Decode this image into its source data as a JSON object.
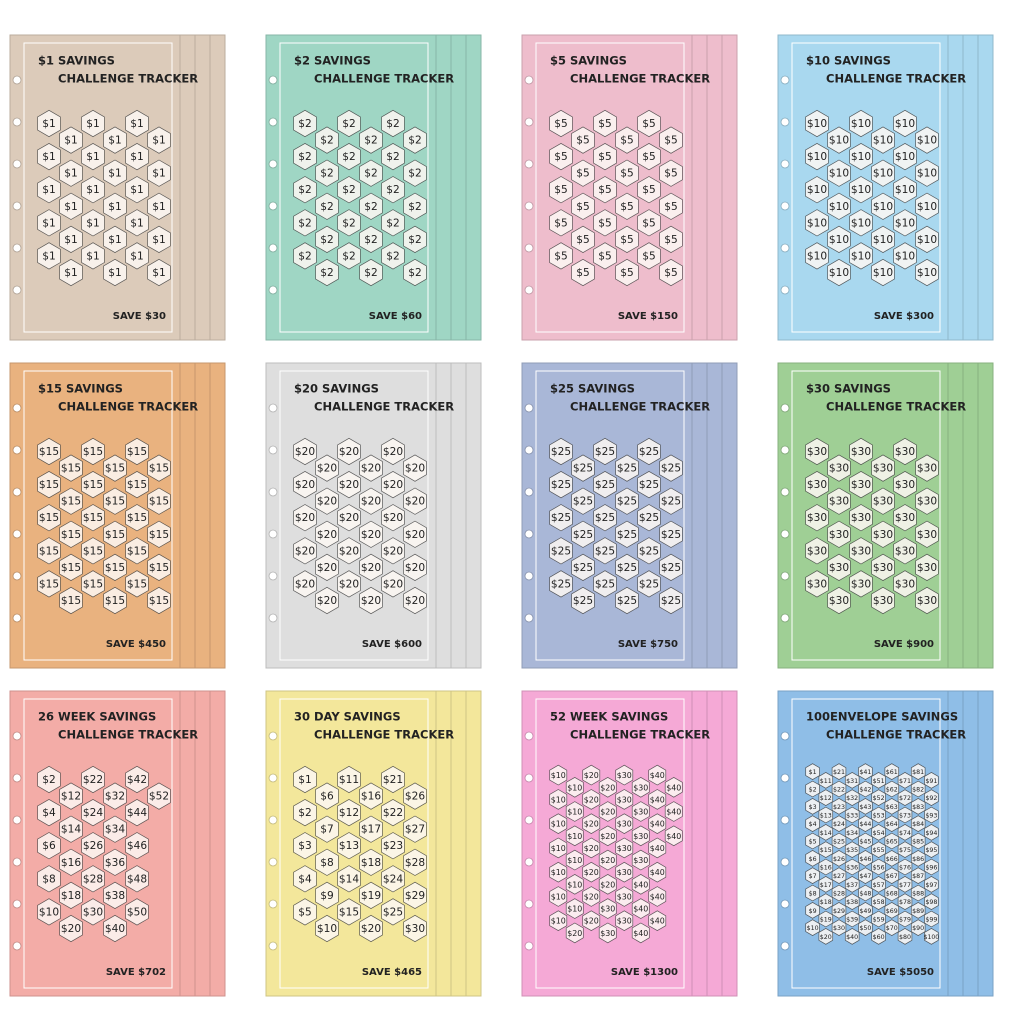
{
  "cards": [
    {
      "title_line1": "$1 SAVINGS",
      "title_line2": "CHALLENGE TRACKER",
      "total": "SAVE $30",
      "color": "#dccbba",
      "cells": [
        "$1",
        "$1",
        "$1",
        "$1",
        "$1",
        "$1",
        "$1",
        "$1",
        "$1",
        "$1",
        "$1",
        "$1",
        "$1",
        "$1",
        "$1",
        "$1",
        "$1",
        "$1",
        "$1",
        "$1",
        "$1",
        "$1",
        "$1",
        "$1",
        "$1",
        "$1",
        "$1",
        "$1",
        "$1",
        "$1"
      ]
    },
    {
      "title_line1": "$2 SAVINGS",
      "title_line2": "CHALLENGE TRACKER",
      "total": "SAVE $60",
      "color": "#9fd6c4",
      "cells": [
        "$2",
        "$2",
        "$2",
        "$2",
        "$2",
        "$2",
        "$2",
        "$2",
        "$2",
        "$2",
        "$2",
        "$2",
        "$2",
        "$2",
        "$2",
        "$2",
        "$2",
        "$2",
        "$2",
        "$2",
        "$2",
        "$2",
        "$2",
        "$2",
        "$2",
        "$2",
        "$2",
        "$2",
        "$2",
        "$2"
      ]
    },
    {
      "title_line1": "$5 SAVINGS",
      "title_line2": "CHALLENGE TRACKER",
      "total": "SAVE $150",
      "color": "#eebdcc",
      "cells": [
        "$5",
        "$5",
        "$5",
        "$5",
        "$5",
        "$5",
        "$5",
        "$5",
        "$5",
        "$5",
        "$5",
        "$5",
        "$5",
        "$5",
        "$5",
        "$5",
        "$5",
        "$5",
        "$5",
        "$5",
        "$5",
        "$5",
        "$5",
        "$5",
        "$5",
        "$5",
        "$5",
        "$5",
        "$5",
        "$5"
      ]
    },
    {
      "title_line1": "$10 SAVINGS",
      "title_line2": "CHALLENGE TRACKER",
      "total": "SAVE $300",
      "color": "#a9d8ef",
      "cells": [
        "$10",
        "$10",
        "$10",
        "$10",
        "$10",
        "$10",
        "$10",
        "$10",
        "$10",
        "$10",
        "$10",
        "$10",
        "$10",
        "$10",
        "$10",
        "$10",
        "$10",
        "$10",
        "$10",
        "$10",
        "$10",
        "$10",
        "$10",
        "$10",
        "$10",
        "$10",
        "$10",
        "$10",
        "$10",
        "$10"
      ]
    },
    {
      "title_line1": "$15 SAVINGS",
      "title_line2": "CHALLENGE TRACKER",
      "total": "SAVE $450",
      "color": "#e9b27f",
      "cells": [
        "$15",
        "$15",
        "$15",
        "$15",
        "$15",
        "$15",
        "$15",
        "$15",
        "$15",
        "$15",
        "$15",
        "$15",
        "$15",
        "$15",
        "$15",
        "$15",
        "$15",
        "$15",
        "$15",
        "$15",
        "$15",
        "$15",
        "$15",
        "$15",
        "$15",
        "$15",
        "$15",
        "$15",
        "$15",
        "$15"
      ]
    },
    {
      "title_line1": "$20 SAVINGS",
      "title_line2": "CHALLENGE TRACKER",
      "total": "SAVE $600",
      "color": "#dedede",
      "cells": [
        "$20",
        "$20",
        "$20",
        "$20",
        "$20",
        "$20",
        "$20",
        "$20",
        "$20",
        "$20",
        "$20",
        "$20",
        "$20",
        "$20",
        "$20",
        "$20",
        "$20",
        "$20",
        "$20",
        "$20",
        "$20",
        "$20",
        "$20",
        "$20",
        "$20",
        "$20",
        "$20",
        "$20",
        "$20",
        "$20"
      ]
    },
    {
      "title_line1": "$25 SAVINGS",
      "title_line2": "CHALLENGE TRACKER",
      "total": "SAVE $750",
      "color": "#a9b7d7",
      "cells": [
        "$25",
        "$25",
        "$25",
        "$25",
        "$25",
        "$25",
        "$25",
        "$25",
        "$25",
        "$25",
        "$25",
        "$25",
        "$25",
        "$25",
        "$25",
        "$25",
        "$25",
        "$25",
        "$25",
        "$25",
        "$25",
        "$25",
        "$25",
        "$25",
        "$25",
        "$25",
        "$25",
        "$25",
        "$25",
        "$25"
      ]
    },
    {
      "title_line1": "$30 SAVINGS",
      "title_line2": "CHALLENGE TRACKER",
      "total": "SAVE $900",
      "color": "#9fcf95",
      "cells": [
        "$30",
        "$30",
        "$30",
        "$30",
        "$30",
        "$30",
        "$30",
        "$30",
        "$30",
        "$30",
        "$30",
        "$30",
        "$30",
        "$30",
        "$30",
        "$30",
        "$30",
        "$30",
        "$30",
        "$30",
        "$30",
        "$30",
        "$30",
        "$30",
        "$30",
        "$30",
        "$30",
        "$30",
        "$30",
        "$30"
      ]
    },
    {
      "title_line1": "26 WEEK SAVINGS",
      "title_line2": "CHALLENGE TRACKER",
      "total": "SAVE $702",
      "color": "#f3aca7",
      "cells": [
        "$2",
        "$4",
        "$6",
        "$8",
        "$10",
        "$12",
        "$14",
        "$16",
        "$18",
        "$20",
        "$22",
        "$24",
        "$26",
        "$28",
        "$30",
        "$32",
        "$34",
        "$36",
        "$38",
        "$40",
        "$42",
        "$44",
        "$46",
        "$48",
        "$50",
        "$52"
      ]
    },
    {
      "title_line1": "30 DAY SAVINGS",
      "title_line2": "CHALLENGE TRACKER",
      "total": "SAVE $465",
      "color": "#f3e79b",
      "cells": [
        "$1",
        "$2",
        "$3",
        "$4",
        "$5",
        "$6",
        "$7",
        "$8",
        "$9",
        "$10",
        "$11",
        "$12",
        "$13",
        "$14",
        "$15",
        "$16",
        "$17",
        "$18",
        "$19",
        "$20",
        "$21",
        "$22",
        "$23",
        "$24",
        "$25",
        "$26",
        "$27",
        "$28",
        "$29",
        "$30"
      ]
    },
    {
      "title_line1": "52 WEEK SAVINGS",
      "title_line2": "CHALLENGE TRACKER",
      "total": "SAVE $1300",
      "color": "#f5a9d6",
      "cells": [
        "$10",
        "$10",
        "$10",
        "$10",
        "$10",
        "$10",
        "$10",
        "$10",
        "$10",
        "$10",
        "$10",
        "$10",
        "$10",
        "$20",
        "$20",
        "$20",
        "$20",
        "$20",
        "$20",
        "$20",
        "$20",
        "$20",
        "$20",
        "$20",
        "$20",
        "$20",
        "$30",
        "$30",
        "$30",
        "$30",
        "$30",
        "$30",
        "$30",
        "$30",
        "$30",
        "$30",
        "$30",
        "$30",
        "$30",
        "$40",
        "$40",
        "$40",
        "$40",
        "$40",
        "$40",
        "$40",
        "$40",
        "$40",
        "$40",
        "$40",
        "$40",
        "$40"
      ]
    },
    {
      "title_line1": "100ENVELOPE SAVINGS",
      "title_line2": "CHALLENGE TRACKER",
      "total": "SAVE $5050",
      "color": "#8fbee7",
      "cells": [
        "$1",
        "$2",
        "$3",
        "$4",
        "$5",
        "$6",
        "$7",
        "$8",
        "$9",
        "$10",
        "$11",
        "$12",
        "$13",
        "$14",
        "$15",
        "$16",
        "$17",
        "$18",
        "$19",
        "$20",
        "$21",
        "$22",
        "$23",
        "$24",
        "$25",
        "$26",
        "$27",
        "$28",
        "$29",
        "$30",
        "$31",
        "$32",
        "$33",
        "$34",
        "$35",
        "$36",
        "$37",
        "$38",
        "$39",
        "$40",
        "$41",
        "$42",
        "$43",
        "$44",
        "$45",
        "$46",
        "$47",
        "$48",
        "$49",
        "$50",
        "$51",
        "$52",
        "$53",
        "$54",
        "$55",
        "$56",
        "$57",
        "$58",
        "$59",
        "$60",
        "$61",
        "$62",
        "$63",
        "$64",
        "$65",
        "$66",
        "$67",
        "$68",
        "$69",
        "$70",
        "$71",
        "$72",
        "$73",
        "$74",
        "$75",
        "$76",
        "$77",
        "$78",
        "$79",
        "$80",
        "$81",
        "$82",
        "$83",
        "$84",
        "$85",
        "$86",
        "$87",
        "$88",
        "$89",
        "$90",
        "$91",
        "$92",
        "$93",
        "$94",
        "$95",
        "$96",
        "$97",
        "$98",
        "$99",
        "$100"
      ]
    }
  ]
}
